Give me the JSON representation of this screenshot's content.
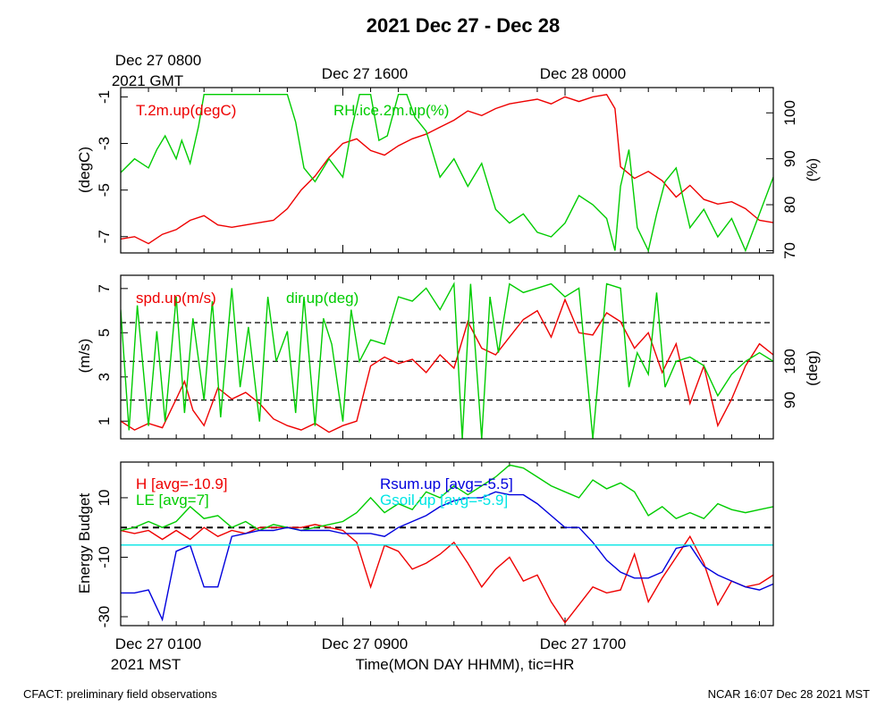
{
  "title": "2021 Dec 27 - Dec 28",
  "footer": {
    "left": "CFACT: preliminary field observations",
    "right": "NCAR 16:07 Dec 28 2021 MST"
  },
  "top_axis": {
    "labels": [
      "Dec 27 0800",
      "Dec 27 1600",
      "Dec 28 0000"
    ],
    "tz_label": "2021 GMT"
  },
  "bottom_axis": {
    "labels": [
      "Dec 27 0100",
      "Dec 27 0900",
      "Dec 27 1700"
    ],
    "tz_label": "2021 MST",
    "xlabel": "Time(MON DAY HHMM), tic=HR"
  },
  "colors": {
    "red": "#ee0000",
    "green": "#00cc00",
    "blue": "#0000dd",
    "cyan": "#00e5e5",
    "black": "#000000"
  },
  "chart_data": [
    {
      "type": "line",
      "panel": "temperature-humidity",
      "x_unit": "hours since Dec 27 0100 MST",
      "xlim": [
        0,
        23.5
      ],
      "ylabel": "(degC)",
      "ylim": [
        -7.7,
        -0.6
      ],
      "yticks": [
        -7,
        -5,
        -3,
        -1
      ],
      "y2label": "(%)",
      "y2lim": [
        69.5,
        105.5
      ],
      "y2ticks": [
        70,
        80,
        90,
        100
      ],
      "series": [
        {
          "name": "T.2m.up(degC)",
          "color": "red",
          "axis": "left",
          "x": [
            0,
            0.5,
            1,
            1.5,
            2,
            2.5,
            3,
            3.5,
            4,
            4.5,
            5,
            5.5,
            6,
            6.5,
            7,
            7.5,
            8,
            8.5,
            9,
            9.5,
            10,
            10.5,
            11,
            11.5,
            12,
            12.5,
            13,
            13.5,
            14,
            14.5,
            15,
            15.5,
            16,
            16.5,
            17,
            17.5,
            17.8,
            18,
            18.5,
            19,
            19.5,
            20,
            20.5,
            21,
            21.5,
            22,
            22.5,
            23,
            23.5
          ],
          "y": [
            -7.1,
            -7.0,
            -7.3,
            -6.9,
            -6.7,
            -6.3,
            -6.1,
            -6.5,
            -6.6,
            -6.5,
            -6.4,
            -6.3,
            -5.8,
            -5.0,
            -4.4,
            -3.6,
            -3.0,
            -2.8,
            -3.3,
            -3.5,
            -3.1,
            -2.8,
            -2.6,
            -2.3,
            -2.0,
            -1.6,
            -1.8,
            -1.5,
            -1.3,
            -1.2,
            -1.1,
            -1.3,
            -1.0,
            -1.2,
            -1.0,
            -0.9,
            -1.5,
            -4.0,
            -4.5,
            -4.2,
            -4.6,
            -5.3,
            -4.8,
            -5.4,
            -5.6,
            -5.5,
            -5.8,
            -6.3,
            -6.4
          ]
        },
        {
          "name": "RH.ice.2m.up(%)",
          "color": "green",
          "axis": "right",
          "x": [
            0,
            0.5,
            1,
            1.3,
            1.6,
            2,
            2.2,
            2.5,
            2.8,
            3,
            3.2,
            3.5,
            4,
            4.5,
            5,
            5.5,
            6,
            6.3,
            6.6,
            7,
            7.5,
            8,
            8.3,
            8.6,
            9,
            9.3,
            9.6,
            10,
            10.3,
            10.6,
            11,
            11.5,
            12,
            12.5,
            13,
            13.5,
            14,
            14.5,
            15,
            15.5,
            16,
            16.5,
            17,
            17.5,
            17.8,
            18,
            18.3,
            18.6,
            19,
            19.3,
            19.6,
            20,
            20.5,
            21,
            21.5,
            22,
            22.5,
            23,
            23.5
          ],
          "y": [
            87,
            90,
            88,
            92,
            95,
            90,
            94,
            89,
            97,
            104,
            104,
            104,
            104,
            104,
            104,
            104,
            104,
            98,
            88,
            85,
            90,
            86,
            96,
            104,
            104,
            94,
            95,
            104,
            104,
            99,
            96,
            86,
            90,
            84,
            89,
            79,
            76,
            78,
            74,
            73,
            76,
            82,
            80,
            77,
            70,
            84,
            92,
            75,
            70,
            78,
            85,
            88,
            75,
            79,
            73,
            77,
            70,
            78,
            86
          ]
        }
      ]
    },
    {
      "type": "line",
      "panel": "wind",
      "x_unit": "hours since Dec 27 0100 MST",
      "xlim": [
        0,
        23.5
      ],
      "ylabel": "(m/s)",
      "ylim": [
        0.2,
        7.6
      ],
      "yticks": [
        1,
        3,
        5,
        7
      ],
      "y2label": "(deg)",
      "y2lim": [
        0,
        380
      ],
      "y2ticks": [
        90,
        180
      ],
      "reference_lines_deg": [
        90,
        180,
        270
      ],
      "series": [
        {
          "name": "spd.up(m/s)",
          "color": "red",
          "axis": "left",
          "x": [
            0,
            0.5,
            1,
            1.5,
            2,
            2.3,
            2.6,
            3,
            3.5,
            4,
            4.5,
            5,
            5.5,
            6,
            6.5,
            7,
            7.5,
            8,
            8.5,
            9,
            9.5,
            10,
            10.5,
            11,
            11.5,
            12,
            12.5,
            13,
            13.5,
            14,
            14.5,
            15,
            15.5,
            16,
            16.5,
            17,
            17.5,
            18,
            18.5,
            19,
            19.5,
            20,
            20.5,
            21,
            21.5,
            22,
            22.5,
            23,
            23.5
          ],
          "y": [
            1.0,
            0.6,
            0.9,
            0.7,
            2.0,
            2.8,
            1.5,
            0.8,
            2.5,
            2.0,
            2.3,
            1.8,
            1.1,
            0.8,
            0.6,
            0.9,
            0.5,
            0.8,
            1.0,
            3.5,
            3.9,
            3.6,
            3.8,
            3.2,
            4.0,
            3.4,
            5.5,
            4.3,
            4.0,
            4.8,
            5.6,
            6.0,
            4.8,
            6.5,
            5.0,
            4.9,
            5.9,
            5.5,
            4.3,
            5.0,
            3.2,
            4.5,
            1.8,
            3.5,
            0.8,
            2.0,
            3.5,
            4.5,
            4.0
          ]
        },
        {
          "name": "dir.up(deg)",
          "color": "green",
          "axis": "right",
          "x": [
            0,
            0.3,
            0.6,
            1,
            1.3,
            1.6,
            2,
            2.3,
            2.6,
            3,
            3.3,
            3.6,
            4,
            4.3,
            4.6,
            5,
            5.3,
            5.6,
            6,
            6.3,
            6.6,
            7,
            7.3,
            7.6,
            8,
            8.3,
            8.6,
            9,
            9.5,
            10,
            10.5,
            11,
            11.5,
            12,
            12.3,
            12.6,
            13,
            13.3,
            13.6,
            14,
            14.5,
            15,
            15.5,
            16,
            16.5,
            17,
            17.5,
            18,
            18.3,
            18.6,
            19,
            19.3,
            19.6,
            20,
            20.5,
            21,
            21.5,
            22,
            22.5,
            23,
            23.5
          ],
          "y": [
            300,
            20,
            310,
            30,
            250,
            40,
            330,
            60,
            280,
            90,
            320,
            50,
            350,
            120,
            260,
            40,
            330,
            180,
            250,
            60,
            330,
            30,
            280,
            220,
            40,
            300,
            180,
            230,
            220,
            330,
            320,
            350,
            300,
            360,
            0,
            360,
            0,
            330,
            200,
            360,
            340,
            350,
            360,
            330,
            350,
            0,
            360,
            350,
            120,
            200,
            150,
            340,
            120,
            180,
            190,
            170,
            100,
            150,
            180,
            200,
            180
          ]
        }
      ]
    },
    {
      "type": "line",
      "panel": "energy-budget",
      "x_unit": "hours since Dec 27 0100 MST",
      "xlim": [
        0,
        23.5
      ],
      "ylabel": "Energy Budget",
      "ylim": [
        -33,
        22
      ],
      "yticks": [
        -30,
        -10,
        10
      ],
      "zero_line": 0,
      "series": [
        {
          "name": "H",
          "label": "H [avg=-10.9]",
          "color": "red",
          "x": [
            0,
            0.5,
            1,
            1.5,
            2,
            2.5,
            3,
            3.5,
            4,
            4.5,
            5,
            5.5,
            6,
            6.5,
            7,
            7.5,
            8,
            8.5,
            9,
            9.5,
            10,
            10.5,
            11,
            11.5,
            12,
            12.5,
            13,
            13.5,
            14,
            14.5,
            15,
            15.5,
            16,
            16.5,
            17,
            17.5,
            18,
            18.5,
            19,
            19.5,
            20,
            20.5,
            21,
            21.5,
            22,
            22.5,
            23,
            23.5
          ],
          "y": [
            -1,
            -2,
            -1,
            -4,
            -1,
            -4,
            0,
            -3,
            -1,
            -2,
            0,
            0,
            0,
            0,
            1,
            0,
            -1,
            -5,
            -20,
            -6,
            -8,
            -14,
            -12,
            -9,
            -5,
            -12,
            -20,
            -14,
            -10,
            -18,
            -16,
            -25,
            -32,
            -26,
            -20,
            -22,
            -21,
            -9,
            -25,
            -17,
            -10,
            -3,
            -12,
            -26,
            -18,
            -20,
            -19,
            -16
          ]
        },
        {
          "name": "LE",
          "label": "LE [avg=7]",
          "color": "green",
          "x": [
            0,
            0.5,
            1,
            1.5,
            2,
            2.5,
            3,
            3.5,
            4,
            4.5,
            5,
            5.5,
            6,
            6.5,
            7,
            7.5,
            8,
            8.5,
            9,
            9.5,
            10,
            10.5,
            11,
            11.5,
            12,
            12.5,
            13,
            13.5,
            14,
            14.5,
            15,
            15.5,
            16,
            16.5,
            17,
            17.5,
            18,
            18.5,
            19,
            19.5,
            20,
            20.5,
            21,
            21.5,
            22,
            22.5,
            23,
            23.5
          ],
          "y": [
            -1,
            0,
            2,
            0,
            2,
            7,
            3,
            4,
            0,
            2,
            -1,
            1,
            0,
            -1,
            0,
            1,
            2,
            5,
            10,
            5,
            8,
            6,
            12,
            10,
            14,
            11,
            14,
            17,
            21,
            20,
            17,
            14,
            12,
            10,
            16,
            13,
            15,
            12,
            4,
            7,
            3,
            5,
            3,
            8,
            6,
            5,
            6,
            7
          ]
        },
        {
          "name": "Rsum.up",
          "label": "Rsum.up [avg=-5.5]",
          "color": "blue",
          "x": [
            0,
            0.5,
            1,
            1.5,
            2,
            2.5,
            3,
            3.5,
            4,
            4.5,
            5,
            5.5,
            6,
            6.5,
            7,
            7.5,
            8,
            8.5,
            9,
            9.5,
            10,
            10.5,
            11,
            11.5,
            12,
            12.5,
            13,
            13.5,
            14,
            14.5,
            15,
            15.5,
            16,
            16.5,
            17,
            17.5,
            18,
            18.5,
            19,
            19.5,
            20,
            20.5,
            21,
            21.5,
            22,
            22.5,
            23,
            23.5
          ],
          "y": [
            -22,
            -22,
            -21,
            -31,
            -8,
            -6,
            -20,
            -20,
            -3,
            -2,
            -1,
            -1,
            0,
            -1,
            -1,
            -1,
            -2,
            -2,
            -2,
            -3,
            0,
            2,
            4,
            7,
            9,
            10,
            10,
            12,
            11,
            11,
            8,
            4,
            0,
            0,
            -5,
            -11,
            -15,
            -17,
            -17,
            -15,
            -7,
            -6,
            -13,
            -16,
            -18,
            -20,
            -21,
            -19
          ]
        },
        {
          "name": "Gsoil.up",
          "label": "Gsoil.up [avg=-5.9]",
          "color": "cyan",
          "x": [
            0,
            23.5
          ],
          "y": [
            -5.9,
            -5.9
          ]
        }
      ]
    }
  ]
}
